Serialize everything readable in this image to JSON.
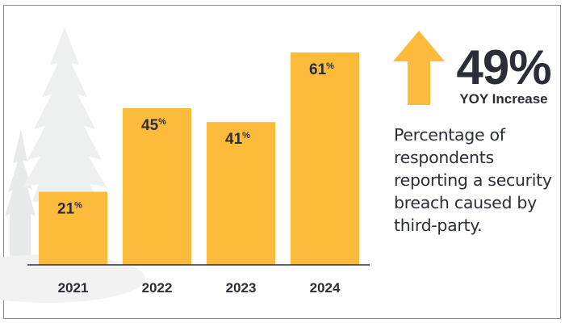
{
  "chart_data": {
    "type": "bar",
    "categories": [
      "2021",
      "2022",
      "2023",
      "2024"
    ],
    "values": [
      21,
      45,
      41,
      61
    ],
    "value_suffix": "%",
    "ylim": [
      0,
      64
    ],
    "grid": false,
    "bar_color": "#fdbb3b",
    "label_color": "#2b2e38"
  },
  "callout": {
    "value": "49%",
    "label": "YOY Increase",
    "arrow_color": "#fdbb3b"
  },
  "description": "Percentage of respondents reporting a security breach caused by third-party."
}
